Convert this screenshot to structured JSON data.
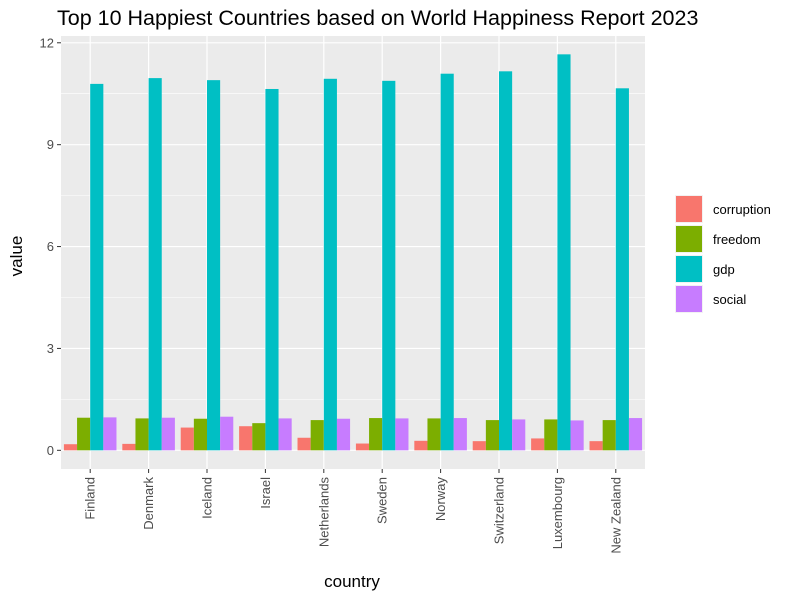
{
  "chart_data": {
    "type": "bar",
    "title": "Top 10 Happiest Countries based on World Happiness Report 2023",
    "xlabel": "country",
    "ylabel": "value",
    "ylim": [
      -0.55,
      12.2
    ],
    "yticks": [
      0,
      3,
      6,
      9,
      12
    ],
    "grid": true,
    "legend_position": "right",
    "categories": [
      "Finland",
      "Denmark",
      "Iceland",
      "Israel",
      "Netherlands",
      "Sweden",
      "Norway",
      "Switzerland",
      "Luxembourg",
      "New Zealand"
    ],
    "series": [
      {
        "name": "corruption",
        "color": "#F8766D",
        "values": [
          0.18,
          0.19,
          0.67,
          0.71,
          0.37,
          0.2,
          0.28,
          0.27,
          0.35,
          0.27
        ]
      },
      {
        "name": "freedom",
        "color": "#7CAE00",
        "values": [
          0.96,
          0.94,
          0.93,
          0.8,
          0.89,
          0.95,
          0.94,
          0.89,
          0.91,
          0.89
        ]
      },
      {
        "name": "gdp",
        "color": "#00BFC4",
        "values": [
          10.79,
          10.96,
          10.9,
          10.64,
          10.94,
          10.88,
          11.09,
          11.16,
          11.66,
          10.66
        ]
      },
      {
        "name": "social",
        "color": "#C77CFF",
        "values": [
          0.97,
          0.96,
          0.99,
          0.94,
          0.93,
          0.94,
          0.95,
          0.91,
          0.88,
          0.95
        ]
      }
    ]
  }
}
